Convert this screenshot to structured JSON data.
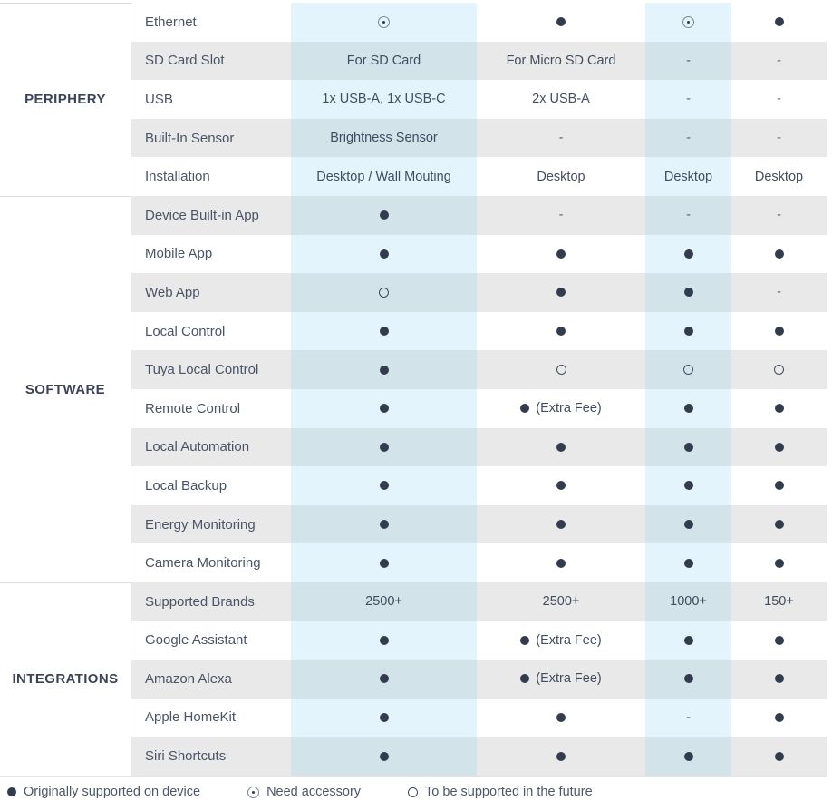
{
  "chart_data": {
    "type": "table",
    "description": "Smart home hub product comparison matrix, 4 product columns (unnamed), grouped by category",
    "highlighted_columns": [
      0,
      2
    ],
    "sections": [
      {
        "category": "PERIPHERY",
        "rows": [
          {
            "feature": "Ethernet",
            "values": [
              "⊙",
              "●",
              "⊙",
              "●"
            ]
          },
          {
            "feature": "SD Card Slot",
            "values": [
              "For SD Card",
              "For Micro SD Card",
              "-",
              "-"
            ]
          },
          {
            "feature": "USB",
            "values": [
              "1x USB-A, 1x USB-C",
              "2x USB-A",
              "-",
              "-"
            ]
          },
          {
            "feature": "Built-In Sensor",
            "values": [
              "Brightness Sensor",
              "-",
              "-",
              "-"
            ]
          },
          {
            "feature": "Installation",
            "values": [
              "Desktop / Wall Mouting",
              "Desktop",
              "Desktop",
              "Desktop"
            ]
          }
        ]
      },
      {
        "category": "SOFTWARE",
        "rows": [
          {
            "feature": "Device Built-in App",
            "values": [
              "●",
              "-",
              "-",
              "-"
            ]
          },
          {
            "feature": "Mobile App",
            "values": [
              "●",
              "●",
              "●",
              "●"
            ]
          },
          {
            "feature": "Web App",
            "values": [
              "○",
              "●",
              "●",
              "-"
            ]
          },
          {
            "feature": "Local Control",
            "values": [
              "●",
              "●",
              "●",
              "●"
            ]
          },
          {
            "feature": "Tuya Local Control",
            "values": [
              "●",
              "○",
              "○",
              "○"
            ]
          },
          {
            "feature": "Remote Control",
            "values": [
              "●",
              "● (Extra Fee)",
              "●",
              "●"
            ]
          },
          {
            "feature": "Local Automation",
            "values": [
              "●",
              "●",
              "●",
              "●"
            ]
          },
          {
            "feature": "Local Backup",
            "values": [
              "●",
              "●",
              "●",
              "●"
            ]
          },
          {
            "feature": "Energy Monitoring",
            "values": [
              "●",
              "●",
              "●",
              "●"
            ]
          },
          {
            "feature": "Camera Monitoring",
            "values": [
              "●",
              "●",
              "●",
              "●"
            ]
          }
        ]
      },
      {
        "category": "INTEGRATIONS",
        "rows": [
          {
            "feature": "Supported Brands",
            "values": [
              "2500+",
              "2500+",
              "1000+",
              "150+"
            ]
          },
          {
            "feature": "Google Assistant",
            "values": [
              "●",
              "● (Extra Fee)",
              "●",
              "●"
            ]
          },
          {
            "feature": "Amazon Alexa",
            "values": [
              "●",
              "● (Extra Fee)",
              "●",
              "●"
            ]
          },
          {
            "feature": "Apple HomeKit",
            "values": [
              "●",
              "●",
              "-",
              "●"
            ]
          },
          {
            "feature": "Siri Shortcuts",
            "values": [
              "●",
              "●",
              "●",
              "●"
            ]
          }
        ]
      }
    ],
    "legend": [
      {
        "symbol": "●",
        "label": "Originally supported on device"
      },
      {
        "symbol": "⊙",
        "label": "Need accessory"
      },
      {
        "symbol": "○",
        "label": "To be supported in the future"
      }
    ],
    "symbol_meanings": {
      "●": "Originally supported on device",
      "⊙": "Need accessory",
      "○": "To be supported in the future",
      "-": "Not available"
    },
    "colors": {
      "highlight_column_on_white": "#e4f4fc",
      "highlight_column_on_gray": "#d2e3ea",
      "row_stripe_gray": "#e9e9e9",
      "symbol_dark": "#333c4d",
      "text_dark": "#4a5467"
    }
  }
}
